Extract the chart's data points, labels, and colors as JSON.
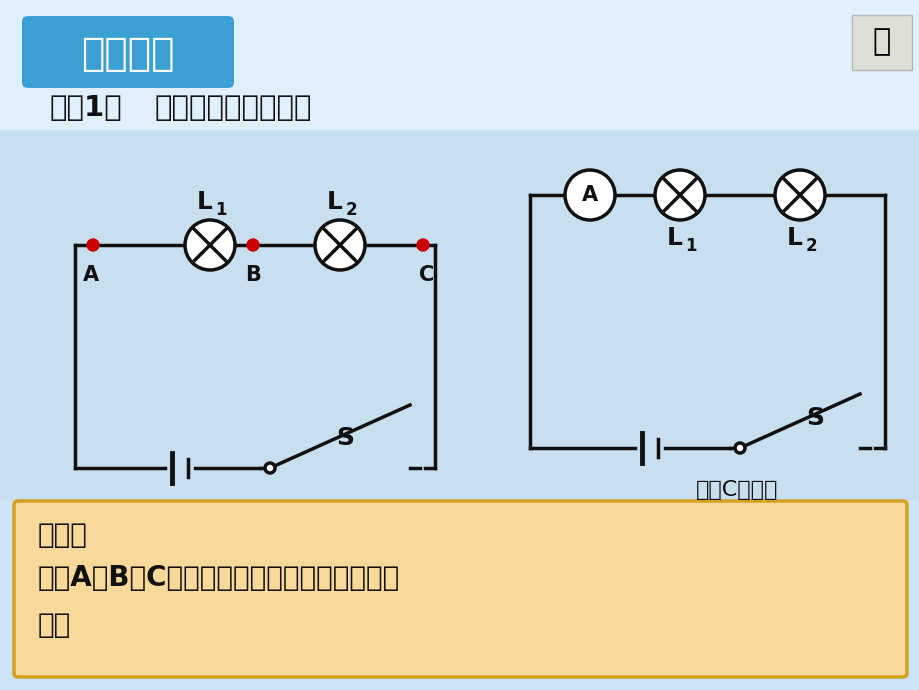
{
  "bg_color": "#cce4f5",
  "bg_top_color": "#e8f4fc",
  "title_box_color": "#3b9fd4",
  "title_text": "实验探究",
  "title_text_color": "#ffffff",
  "subtitle_text1": "探究1：",
  "subtitle_text2": "串联电路的电流规律",
  "subtitle_color": "#111111",
  "bottom_box_color": "#f8d99a",
  "bottom_box_border": "#d4a020",
  "bottom_text_line1": "猜想：",
  "bottom_text_line2": "流过A、B、C各点的电流大小可能存在什么关",
  "bottom_text_line3": "系？",
  "bottom_text_color": "#111111",
  "caption_right": "测量C点电流",
  "wire_color": "#111111",
  "dot_color": "#cc0000",
  "label_color": "#111111"
}
